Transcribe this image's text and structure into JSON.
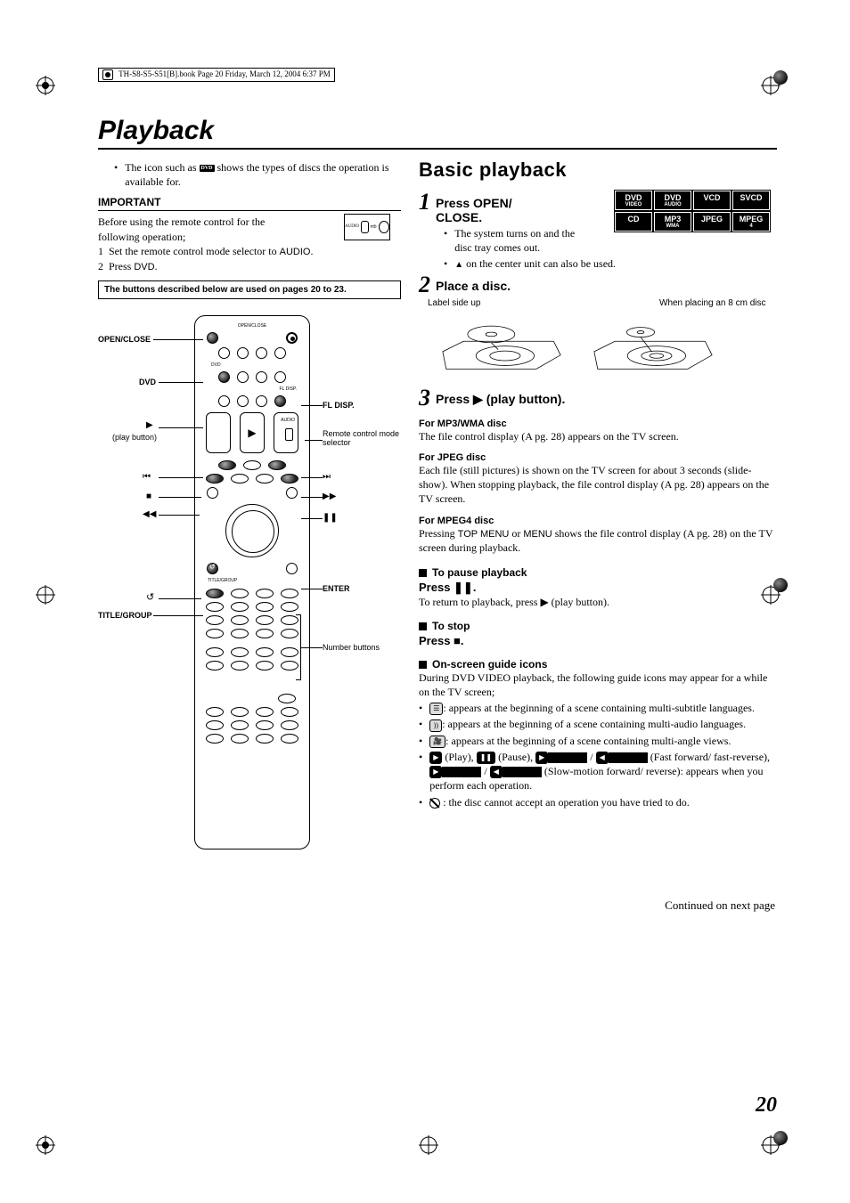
{
  "meta": {
    "header": "TH-S8-S5-S51[B].book  Page 20  Friday, March 12, 2004  6:37 PM"
  },
  "title": "Playback",
  "left": {
    "intro_pre": "The icon such as",
    "intro_icon": "DVD",
    "intro_post": "shows the types of discs the operation is available for.",
    "important": "IMPORTANT",
    "important_body": "Before using the remote control for the following operation;",
    "important_1": "Set the remote control mode selector to",
    "important_1b": "AUDIO",
    "important_2_pre": "Press",
    "important_2_b": "DVD",
    "mode_labels": {
      "audio": "AUDIO",
      "dvd": "DVD"
    },
    "note": "The buttons described below are used on pages 20 to 23.",
    "labels": {
      "open_close": "OPEN/CLOSE",
      "dvd": "DVD",
      "play": "3",
      "play_sub": "(play button)",
      "prev": "4",
      "stop": "7",
      "rew": "1",
      "title_group": "TITLE/GROUP",
      "return": "",
      "fl_disp": "FL DISP.",
      "remote_mode": "Remote control mode selector",
      "next": "¢",
      "ffwd": "¡",
      "pause": "8",
      "enter": "ENTER",
      "number": "Number buttons"
    }
  },
  "right": {
    "section": "Basic playback",
    "badges": [
      "DVD|VIDEO",
      "DVD|AUDIO",
      "VCD",
      "SVCD",
      "CD",
      "MP3|WMA",
      "JPEG",
      "MPEG|4"
    ],
    "step1": {
      "n": "1",
      "t": "Press OPEN/ CLOSE.",
      "b1": "The system turns on and the disc tray comes out.",
      "b2_pre": "",
      "b2_post": "on the center unit can also be used."
    },
    "step2": {
      "n": "2",
      "t": "Place a disc.",
      "label_side": "Label side up",
      "eight": "When placing an 8 cm disc"
    },
    "step3": {
      "n": "3",
      "t": "Press 3 (play button)."
    },
    "mp3": {
      "h": "For MP3/WMA disc",
      "t": "The file control display (A pg. 28) appears on the TV screen."
    },
    "jpeg": {
      "h": "For JPEG disc",
      "t": "Each file (still pictures) is shown on the TV screen for about 3 seconds (slide-show). When stopping playback, the file control display (A pg. 28) appears on the TV screen."
    },
    "mpeg4": {
      "h": "For MPEG4 disc",
      "t_pre": "Pressing ",
      "t_b1": "TOP MENU",
      "t_mid": " or ",
      "t_b2": "MENU",
      "t_post": " shows the file control display (A pg. 28) on the TV screen during playback."
    },
    "pause": {
      "h": "To pause playback",
      "p": "Press 8.",
      "t": "To return to playback, press 3 (play button)."
    },
    "stop": {
      "h": "To stop",
      "p": "Press 7."
    },
    "guide": {
      "h": "On-screen guide icons",
      "intro": "During DVD VIDEO playback, the following guide icons may appear for a while on the TV screen;",
      "i1": ": appears at the beginning of a scene containing multi-subtitle languages.",
      "i2": ": appears at the beginning of a scene containing multi-audio languages.",
      "i3": ": appears at the beginning of a scene containing multi-angle views.",
      "i4": " (Play),  (Pause),  /  (Fast forward/ fast-reverse),  /  (Slow-motion forward/ reverse): appears when you perform each operation.",
      "i5": ": the disc cannot accept an operation you have tried to do."
    },
    "continued": "Continued on next page",
    "page": "20"
  }
}
